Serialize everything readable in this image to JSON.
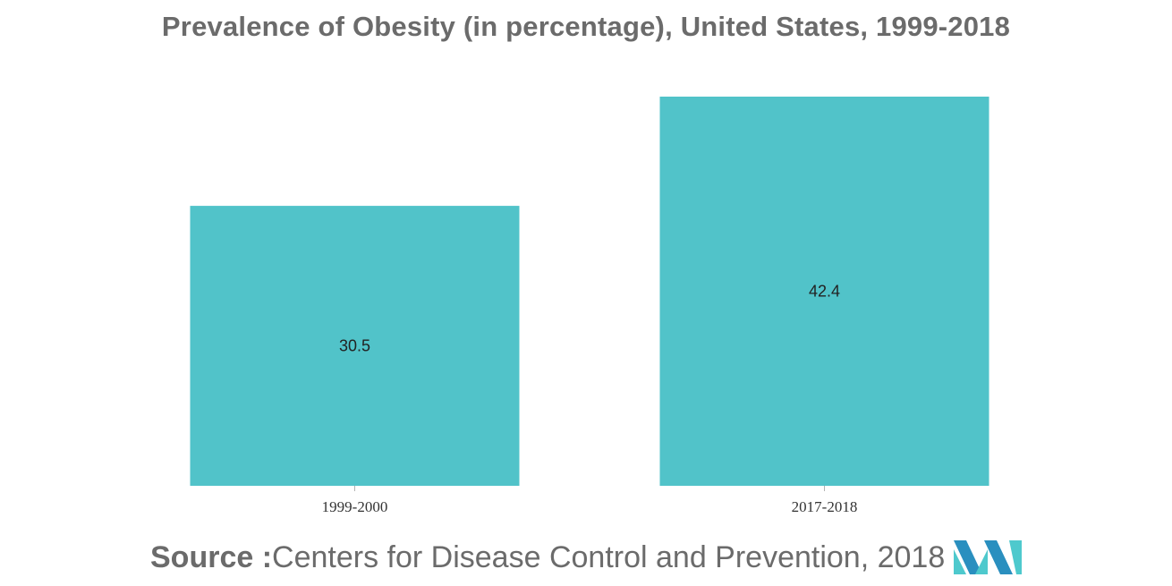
{
  "chart_data": {
    "type": "bar",
    "title": "Prevalence of Obesity (in percentage), United States, 1999-2018",
    "categories": [
      "1999-2000",
      "2017-2018"
    ],
    "values": [
      30.5,
      42.4
    ],
    "data_labels": [
      "30.5",
      "42.4"
    ],
    "xlabel": "",
    "ylabel": "",
    "ylim": [
      0,
      42.4
    ],
    "grid": false,
    "legend": "none",
    "bar_color": "#51c3c9"
  },
  "source": {
    "prefix": "Source :",
    "text": "Centers for Disease Control and Prevention, 2018"
  },
  "logo": {
    "icon": "mordor-intelligence-logo-icon",
    "colors": [
      "#2a8fbf",
      "#4ec9cd"
    ]
  }
}
